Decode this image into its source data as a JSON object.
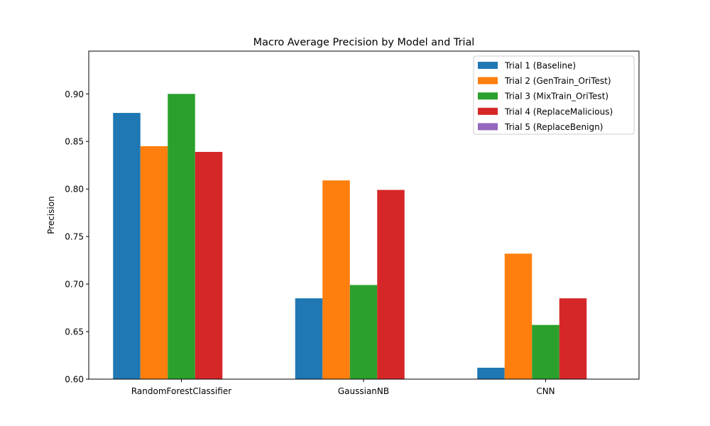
{
  "chart_data": {
    "type": "bar",
    "title": "Macro Average Precision by Model and Trial",
    "xlabel": "",
    "ylabel": "Precision",
    "categories": [
      "RandomForestClassifier",
      "GaussianNB",
      "CNN"
    ],
    "ylim": [
      0.6,
      0.945
    ],
    "yticks": [
      "0.60",
      "0.65",
      "0.70",
      "0.75",
      "0.80",
      "0.85",
      "0.90"
    ],
    "grid": false,
    "legend_position": "top-right",
    "series": [
      {
        "name": "Trial 1 (Baseline)",
        "color": "#1f77b4",
        "values": [
          0.88,
          0.685,
          0.612
        ]
      },
      {
        "name": "Trial 2 (GenTrain_OriTest)",
        "color": "#ff7f0e",
        "values": [
          0.845,
          0.809,
          0.732
        ]
      },
      {
        "name": "Trial 3 (MixTrain_OriTest)",
        "color": "#2ca02c",
        "values": [
          0.9,
          0.699,
          0.657
        ]
      },
      {
        "name": "Trial 4 (ReplaceMalicious)",
        "color": "#d62728",
        "values": [
          0.839,
          0.799,
          0.685
        ]
      },
      {
        "name": "Trial 5 (ReplaceBenign)",
        "color": "#9467bd",
        "values": [
          0.0,
          0.0,
          0.0
        ]
      }
    ]
  }
}
